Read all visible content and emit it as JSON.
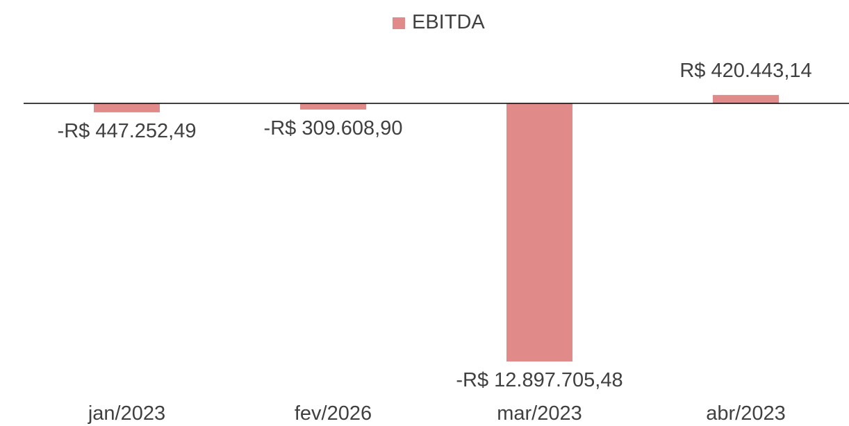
{
  "chart_data": {
    "type": "bar",
    "categories": [
      "jan/2023",
      "fev/2026",
      "mar/2023",
      "abr/2023"
    ],
    "series": [
      {
        "name": "EBITDA",
        "color": "#e08a8a",
        "values": [
          -447252.49,
          -309608.9,
          -12897705.48,
          420443.14
        ],
        "value_labels": [
          "-R$ 447.252,49",
          "-R$ 309.608,90",
          "-R$ 12.897.705,48",
          "R$ 420.443,14"
        ]
      }
    ],
    "ylim": [
      -14000000,
      2000000
    ],
    "legend": "top"
  }
}
